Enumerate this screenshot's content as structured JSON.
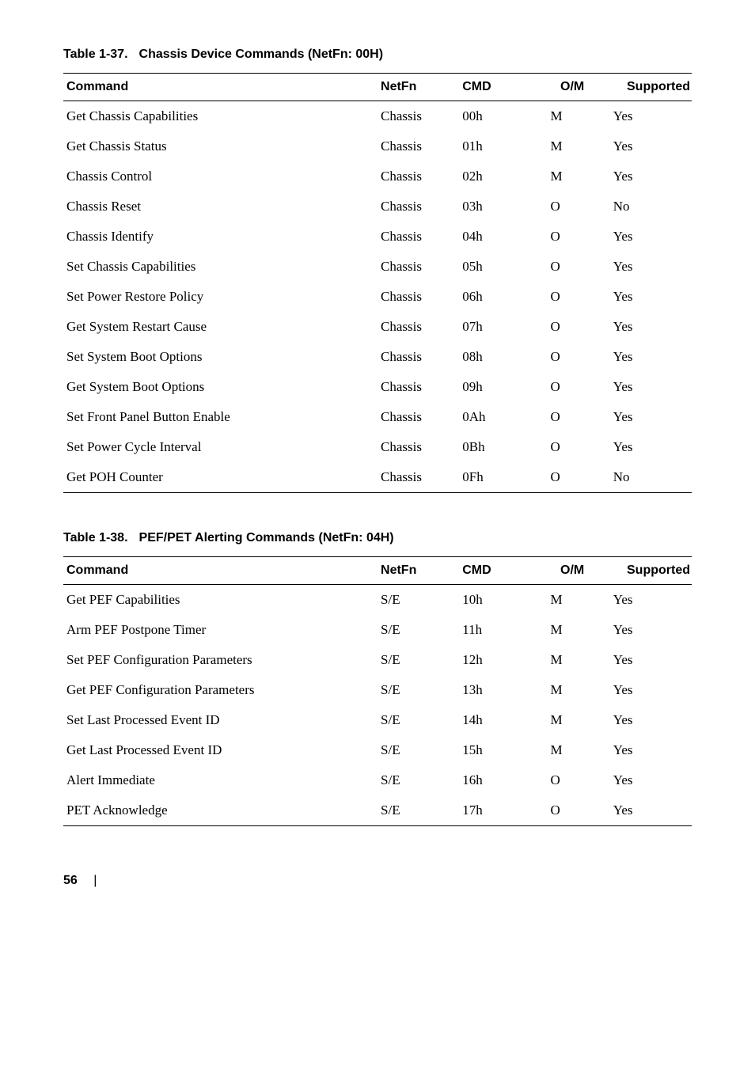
{
  "tables": [
    {
      "title_prefix": "Table 1-37.",
      "title_text": "Chassis Device Commands (NetFn: 00H)",
      "columns": [
        "Command",
        "NetFn",
        "CMD",
        "O/M",
        "Supported"
      ],
      "rows": [
        [
          "Get Chassis Capabilities",
          "Chassis",
          "00h",
          "M",
          "Yes"
        ],
        [
          "Get Chassis Status",
          "Chassis",
          "01h",
          "M",
          "Yes"
        ],
        [
          "Chassis Control",
          "Chassis",
          "02h",
          "M",
          "Yes"
        ],
        [
          "Chassis Reset",
          "Chassis",
          "03h",
          "O",
          "No"
        ],
        [
          "Chassis Identify",
          "Chassis",
          "04h",
          "O",
          "Yes"
        ],
        [
          "Set Chassis Capabilities",
          "Chassis",
          "05h",
          "O",
          "Yes"
        ],
        [
          "Set Power Restore Policy",
          "Chassis",
          "06h",
          "O",
          "Yes"
        ],
        [
          "Get System Restart Cause",
          "Chassis",
          "07h",
          "O",
          "Yes"
        ],
        [
          "Set System Boot Options",
          "Chassis",
          "08h",
          "O",
          "Yes"
        ],
        [
          "Get System Boot Options",
          "Chassis",
          "09h",
          "O",
          "Yes"
        ],
        [
          "Set Front Panel Button Enable",
          "Chassis",
          "0Ah",
          "O",
          "Yes"
        ],
        [
          "Set Power Cycle Interval",
          "Chassis",
          "0Bh",
          "O",
          "Yes"
        ],
        [
          "Get POH Counter",
          "Chassis",
          "0Fh",
          "O",
          "No"
        ]
      ]
    },
    {
      "title_prefix": "Table 1-38.",
      "title_text": "PEF/PET Alerting Commands (NetFn: 04H)",
      "columns": [
        "Command",
        "NetFn",
        "CMD",
        "O/M",
        "Supported"
      ],
      "rows": [
        [
          "Get PEF Capabilities",
          "S/E",
          "10h",
          "M",
          "Yes"
        ],
        [
          "Arm PEF Postpone Timer",
          "S/E",
          "11h",
          "M",
          "Yes"
        ],
        [
          "Set PEF Configuration Parameters",
          "S/E",
          "12h",
          "M",
          "Yes"
        ],
        [
          "Get PEF Configuration Parameters",
          "S/E",
          "13h",
          "M",
          "Yes"
        ],
        [
          "Set Last Processed Event ID",
          "S/E",
          "14h",
          "M",
          "Yes"
        ],
        [
          "Get Last Processed Event ID",
          "S/E",
          "15h",
          "M",
          "Yes"
        ],
        [
          "Alert Immediate",
          "S/E",
          "16h",
          "O",
          "Yes"
        ],
        [
          "PET Acknowledge",
          "S/E",
          "17h",
          "O",
          "Yes"
        ]
      ]
    }
  ],
  "footer": {
    "page_number": "56",
    "separator": "|"
  }
}
